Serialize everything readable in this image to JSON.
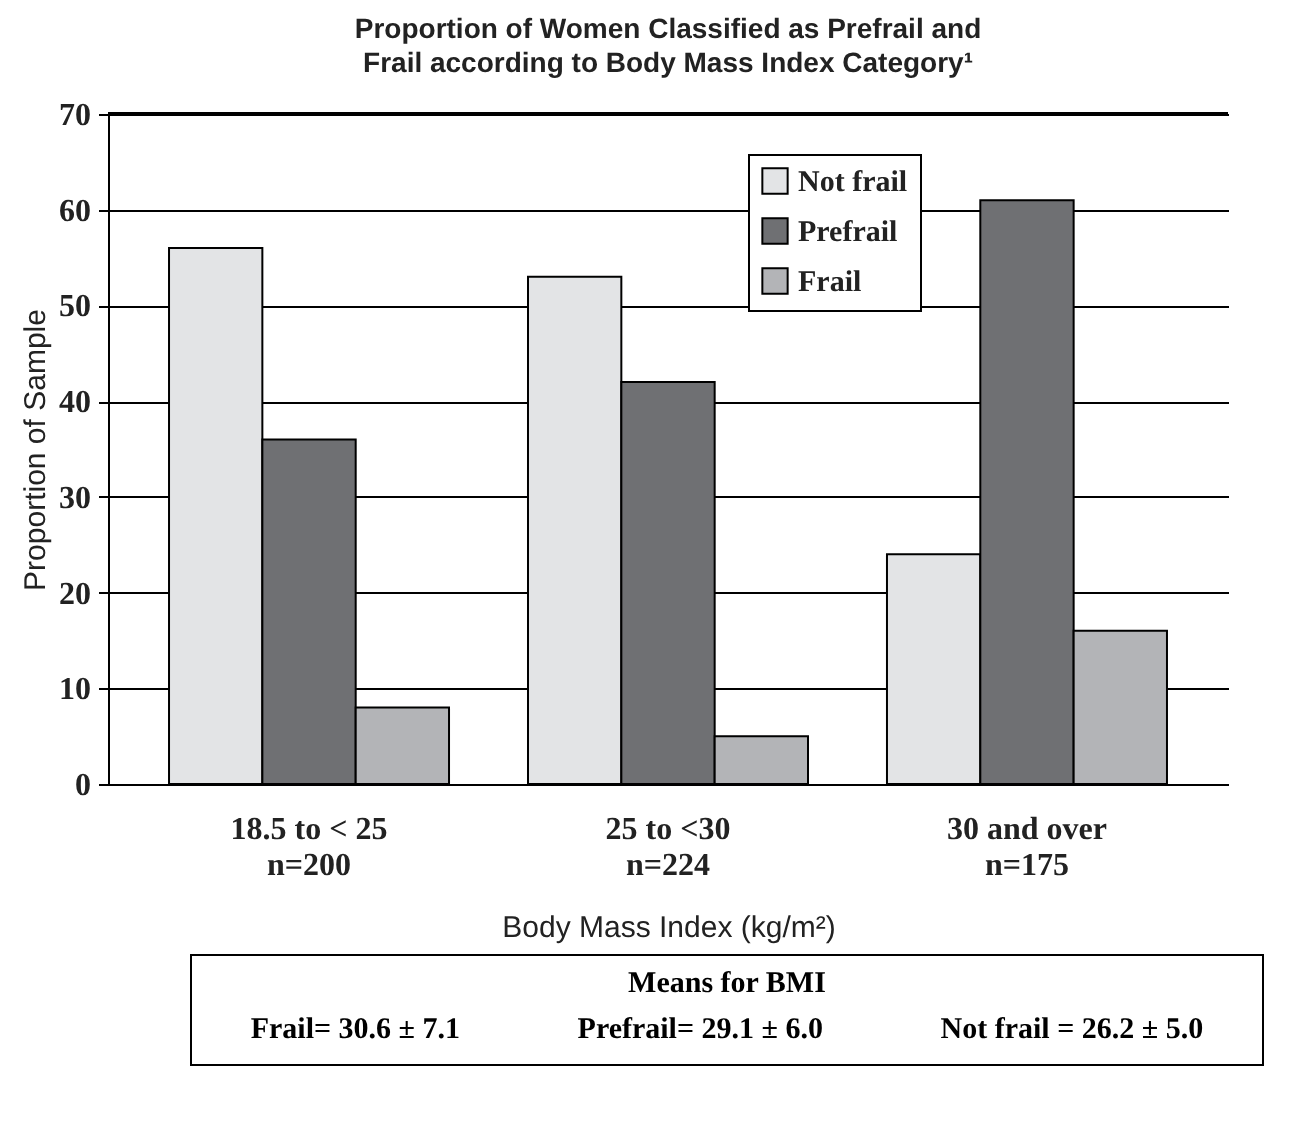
{
  "chart_data": {
    "type": "bar",
    "title": "Proportion of Women Classified as Prefrail and Frail according to Body Mass Index Category¹",
    "xlabel": "Body Mass Index (kg/m²)",
    "ylabel": "Proportion of Sample",
    "categories": [
      "18.5 to < 25\nn=200",
      "25 to <30\nn=224",
      "30 and over\nn=175"
    ],
    "series": [
      {
        "name": "Not frail",
        "color": "#e3e4e6",
        "values": [
          56,
          53,
          24
        ]
      },
      {
        "name": "Prefrail",
        "color": "#6f7073",
        "values": [
          36,
          42,
          61
        ]
      },
      {
        "name": "Frail",
        "color": "#b3b4b7",
        "values": [
          8,
          5,
          16
        ]
      }
    ],
    "ylim": [
      0,
      70
    ],
    "yticks": [
      0,
      10,
      20,
      30,
      40,
      50,
      60,
      70
    ],
    "grid": "y",
    "legend": "top right",
    "annotations": [
      "Means for BMI",
      "Frail= 30.6 ± 7.1",
      "Prefrail= 29.1 ± 6.0",
      "Not frail = 26.2 ± 5.0"
    ]
  }
}
